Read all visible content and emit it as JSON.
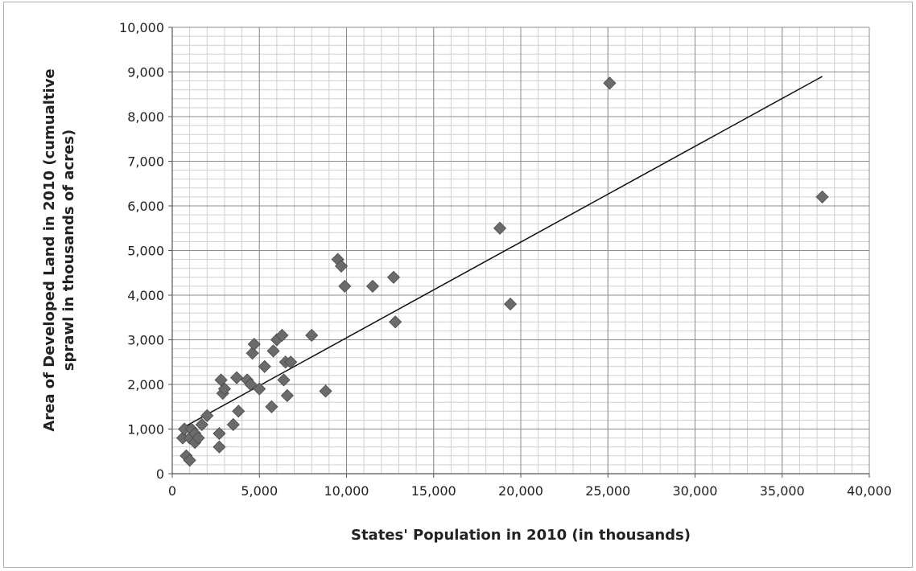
{
  "chart_data": {
    "type": "scatter",
    "title": "",
    "xlabel": "States' Population in 2010 (in thousands)",
    "ylabel_line1": "Area of Developed Land in 2010 (cumualtive",
    "ylabel_line2": "sprawl in thousands of acres)",
    "xlim": [
      0,
      40000
    ],
    "ylim": [
      0,
      10000
    ],
    "x_ticks": [
      0,
      5000,
      10000,
      15000,
      20000,
      25000,
      30000,
      35000,
      40000
    ],
    "x_tick_labels": [
      "0",
      "5,000",
      "10,000",
      "15,000",
      "20,000",
      "25,000",
      "30,000",
      "35,000",
      "40,000"
    ],
    "y_ticks": [
      0,
      1000,
      2000,
      3000,
      4000,
      5000,
      6000,
      7000,
      8000,
      9000,
      10000
    ],
    "y_tick_labels": [
      "0",
      "1,000",
      "2,000",
      "3,000",
      "4,000",
      "5,000",
      "6,000",
      "7,000",
      "8,000",
      "9,000",
      "10,000"
    ],
    "grid": true,
    "marker": "diamond",
    "marker_color": "#6b6b6b",
    "points": [
      {
        "x": 600,
        "y": 800
      },
      {
        "x": 700,
        "y": 1000
      },
      {
        "x": 800,
        "y": 400
      },
      {
        "x": 1000,
        "y": 300
      },
      {
        "x": 1000,
        "y": 800
      },
      {
        "x": 1100,
        "y": 1000
      },
      {
        "x": 1300,
        "y": 900
      },
      {
        "x": 1300,
        "y": 700
      },
      {
        "x": 1500,
        "y": 800
      },
      {
        "x": 1700,
        "y": 1100
      },
      {
        "x": 2000,
        "y": 1300
      },
      {
        "x": 2700,
        "y": 600
      },
      {
        "x": 2700,
        "y": 900
      },
      {
        "x": 2800,
        "y": 2100
      },
      {
        "x": 2900,
        "y": 1800
      },
      {
        "x": 3000,
        "y": 1900
      },
      {
        "x": 3500,
        "y": 1100
      },
      {
        "x": 3700,
        "y": 2150
      },
      {
        "x": 3800,
        "y": 1400
      },
      {
        "x": 4300,
        "y": 2100
      },
      {
        "x": 4500,
        "y": 2000
      },
      {
        "x": 4600,
        "y": 2700
      },
      {
        "x": 4700,
        "y": 2900
      },
      {
        "x": 5000,
        "y": 1900
      },
      {
        "x": 5300,
        "y": 2400
      },
      {
        "x": 5700,
        "y": 1500
      },
      {
        "x": 5800,
        "y": 2750
      },
      {
        "x": 6000,
        "y": 3000
      },
      {
        "x": 6300,
        "y": 3100
      },
      {
        "x": 6400,
        "y": 2100
      },
      {
        "x": 6500,
        "y": 2500
      },
      {
        "x": 6600,
        "y": 1750
      },
      {
        "x": 6800,
        "y": 2500
      },
      {
        "x": 8000,
        "y": 3100
      },
      {
        "x": 8800,
        "y": 1850
      },
      {
        "x": 9500,
        "y": 4800
      },
      {
        "x": 9700,
        "y": 4650
      },
      {
        "x": 9900,
        "y": 4200
      },
      {
        "x": 11500,
        "y": 4200
      },
      {
        "x": 12700,
        "y": 4400
      },
      {
        "x": 12800,
        "y": 3400
      },
      {
        "x": 18800,
        "y": 5500
      },
      {
        "x": 19400,
        "y": 3800
      },
      {
        "x": 25100,
        "y": 8750
      },
      {
        "x": 37300,
        "y": 6200
      }
    ],
    "trendline": {
      "x": [
        700,
        37300
      ],
      "y": [
        1050,
        8900
      ]
    }
  }
}
